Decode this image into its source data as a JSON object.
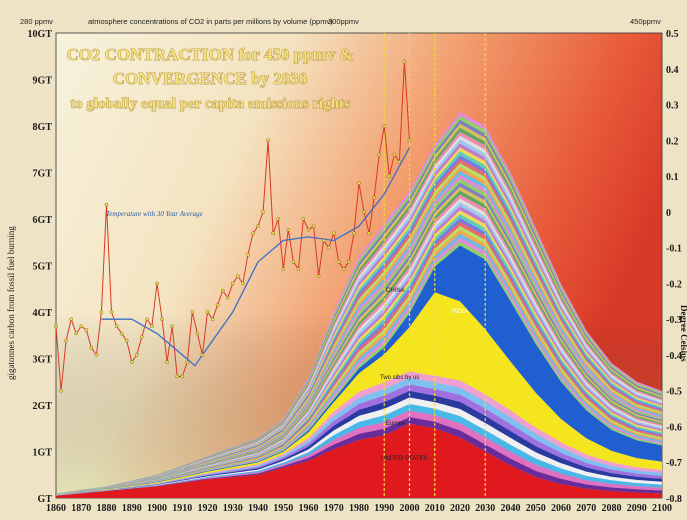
{
  "top_labels": {
    "left": "280 ppmv",
    "center": "atmosphere concentrations of CO2 in parts per millions by volume (ppmv)",
    "center_right": "300ppmv",
    "right": "450ppmv"
  },
  "title": {
    "line1": "CO2 CONTRACTION for 450 ppmv &",
    "line2": "CONVERGENCE by 2030",
    "line3": "to globally equal per capita emissions rights"
  },
  "left_axis_title": "gigatonnes carbon from fossil fuel burning",
  "right_axis_title": "Degree Celsius",
  "annotations": {
    "temperature": "Temperature with 30 Year Average",
    "china": "CHINA",
    "india": "INDIA",
    "united_states": "UNITED STATES",
    "small_1": "Two sibs by us",
    "small_2": "Europe"
  },
  "colors": {
    "temperature_line": "#d83a22",
    "temperature_avg": "#3a6fc9",
    "dots": "#f2e03a",
    "usa": "#e0191f",
    "china": "#f5e51e",
    "india": "#1f5fd0",
    "purple": "#6a2c9a",
    "guides": "#f4d83a"
  },
  "chart_data": {
    "type": "area",
    "x_range": [
      1860,
      2100
    ],
    "left_axis": {
      "label": "gigatonnes carbon from fossil fuel burning",
      "ticks": [
        "GT",
        "1GT",
        "2GT",
        "3GT",
        "4GT",
        "5GT",
        "6GT",
        "7GT",
        "8GT",
        "9GT",
        "10GT"
      ],
      "range": [
        0,
        10
      ]
    },
    "right_axis": {
      "label": "Degree Celsius",
      "ticks": [
        "0.5",
        "0.4",
        "0.3",
        "0.2",
        "0.1",
        "0",
        "-0.1",
        "-0.2",
        "-0.3",
        "-0.4",
        "-0.5",
        "-0.6",
        "-0.7",
        "-0.8"
      ],
      "range": [
        -0.8,
        0.5
      ]
    },
    "x_ticks": [
      "1860",
      "1870",
      "1880",
      "1890",
      "1900",
      "1910",
      "1920",
      "1930",
      "1940",
      "1950",
      "1960",
      "1970",
      "1980",
      "1990",
      "2000",
      "2010",
      "2020",
      "2030",
      "2040",
      "2050",
      "2060",
      "2070",
      "2080",
      "2090",
      "2100"
    ],
    "guide_years": [
      1990,
      2000,
      2010,
      2030
    ],
    "total_emissions": [
      [
        1860,
        0.1
      ],
      [
        1880,
        0.25
      ],
      [
        1900,
        0.5
      ],
      [
        1920,
        0.9
      ],
      [
        1940,
        1.3
      ],
      [
        1950,
        1.7
      ],
      [
        1960,
        2.6
      ],
      [
        1970,
        4.0
      ],
      [
        1980,
        5.2
      ],
      [
        1990,
        5.9
      ],
      [
        2000,
        6.6
      ],
      [
        2010,
        7.6
      ],
      [
        2020,
        8.3
      ],
      [
        2030,
        8.0
      ],
      [
        2040,
        7.0
      ],
      [
        2050,
        5.8
      ],
      [
        2060,
        4.6
      ],
      [
        2070,
        3.6
      ],
      [
        2080,
        2.9
      ],
      [
        2090,
        2.5
      ],
      [
        2100,
        2.3
      ]
    ],
    "series": [
      {
        "name": "UNITED STATES",
        "values": [
          [
            1860,
            0.05
          ],
          [
            1900,
            0.25
          ],
          [
            1920,
            0.4
          ],
          [
            1940,
            0.5
          ],
          [
            1960,
            0.8
          ],
          [
            1970,
            1.05
          ],
          [
            1980,
            1.25
          ],
          [
            1990,
            1.35
          ],
          [
            2000,
            1.6
          ],
          [
            2010,
            1.5
          ],
          [
            2020,
            1.3
          ],
          [
            2030,
            1.0
          ],
          [
            2040,
            0.7
          ],
          [
            2050,
            0.45
          ],
          [
            2060,
            0.3
          ],
          [
            2070,
            0.2
          ],
          [
            2080,
            0.15
          ],
          [
            2090,
            0.12
          ],
          [
            2100,
            0.1
          ]
        ]
      },
      {
        "name": "CHINA",
        "values": [
          [
            1860,
            0
          ],
          [
            1950,
            0.05
          ],
          [
            1970,
            0.2
          ],
          [
            1990,
            0.6
          ],
          [
            2000,
            0.95
          ],
          [
            2010,
            1.8
          ],
          [
            2020,
            1.7
          ],
          [
            2030,
            1.4
          ],
          [
            2040,
            1.05
          ],
          [
            2050,
            0.75
          ],
          [
            2060,
            0.5
          ],
          [
            2070,
            0.35
          ],
          [
            2080,
            0.25
          ],
          [
            2090,
            0.2
          ],
          [
            2100,
            0.18
          ]
        ]
      },
      {
        "name": "INDIA",
        "values": [
          [
            1860,
            0
          ],
          [
            1950,
            0.02
          ],
          [
            1970,
            0.06
          ],
          [
            1990,
            0.15
          ],
          [
            2000,
            0.3
          ],
          [
            2010,
            0.55
          ],
          [
            2020,
            1.2
          ],
          [
            2030,
            1.5
          ],
          [
            2040,
            1.3
          ],
          [
            2050,
            1.05
          ],
          [
            2060,
            0.8
          ],
          [
            2070,
            0.6
          ],
          [
            2080,
            0.45
          ],
          [
            2090,
            0.38
          ],
          [
            2100,
            0.35
          ]
        ]
      }
    ],
    "temperature_anomaly": [
      [
        1860,
        -0.32
      ],
      [
        1862,
        -0.5
      ],
      [
        1864,
        -0.36
      ],
      [
        1866,
        -0.3
      ],
      [
        1868,
        -0.34
      ],
      [
        1870,
        -0.32
      ],
      [
        1872,
        -0.33
      ],
      [
        1874,
        -0.38
      ],
      [
        1876,
        -0.4
      ],
      [
        1878,
        -0.28
      ],
      [
        1880,
        0.02
      ],
      [
        1882,
        -0.28
      ],
      [
        1884,
        -0.32
      ],
      [
        1886,
        -0.34
      ],
      [
        1888,
        -0.36
      ],
      [
        1890,
        -0.42
      ],
      [
        1892,
        -0.4
      ],
      [
        1894,
        -0.35
      ],
      [
        1896,
        -0.3
      ],
      [
        1898,
        -0.32
      ],
      [
        1900,
        -0.2
      ],
      [
        1902,
        -0.3
      ],
      [
        1904,
        -0.42
      ],
      [
        1906,
        -0.32
      ],
      [
        1908,
        -0.46
      ],
      [
        1910,
        -0.46
      ],
      [
        1912,
        -0.42
      ],
      [
        1914,
        -0.28
      ],
      [
        1916,
        -0.34
      ],
      [
        1918,
        -0.4
      ],
      [
        1920,
        -0.28
      ],
      [
        1922,
        -0.3
      ],
      [
        1924,
        -0.26
      ],
      [
        1926,
        -0.22
      ],
      [
        1928,
        -0.24
      ],
      [
        1930,
        -0.2
      ],
      [
        1932,
        -0.18
      ],
      [
        1934,
        -0.2
      ],
      [
        1936,
        -0.12
      ],
      [
        1938,
        -0.06
      ],
      [
        1940,
        -0.04
      ],
      [
        1942,
        0.0
      ],
      [
        1944,
        0.2
      ],
      [
        1946,
        -0.06
      ],
      [
        1948,
        -0.02
      ],
      [
        1950,
        -0.16
      ],
      [
        1952,
        -0.05
      ],
      [
        1954,
        -0.14
      ],
      [
        1956,
        -0.16
      ],
      [
        1958,
        -0.02
      ],
      [
        1960,
        -0.05
      ],
      [
        1962,
        -0.04
      ],
      [
        1964,
        -0.18
      ],
      [
        1966,
        -0.08
      ],
      [
        1968,
        -0.1
      ],
      [
        1970,
        -0.06
      ],
      [
        1972,
        -0.14
      ],
      [
        1974,
        -0.16
      ],
      [
        1976,
        -0.14
      ],
      [
        1978,
        -0.06
      ],
      [
        1980,
        0.08
      ],
      [
        1982,
        0.0
      ],
      [
        1984,
        -0.06
      ],
      [
        1986,
        0.04
      ],
      [
        1988,
        0.16
      ],
      [
        1990,
        0.24
      ],
      [
        1992,
        0.1
      ],
      [
        1994,
        0.16
      ],
      [
        1996,
        0.14
      ],
      [
        1998,
        0.42
      ],
      [
        2000,
        0.2
      ]
    ],
    "temperature_30yr_average": [
      [
        1878,
        -0.3
      ],
      [
        1890,
        -0.3
      ],
      [
        1900,
        -0.34
      ],
      [
        1910,
        -0.4
      ],
      [
        1915,
        -0.43
      ],
      [
        1920,
        -0.38
      ],
      [
        1930,
        -0.28
      ],
      [
        1940,
        -0.14
      ],
      [
        1950,
        -0.08
      ],
      [
        1960,
        -0.07
      ],
      [
        1970,
        -0.08
      ],
      [
        1980,
        -0.04
      ],
      [
        1990,
        0.05
      ],
      [
        2000,
        0.18
      ]
    ]
  }
}
